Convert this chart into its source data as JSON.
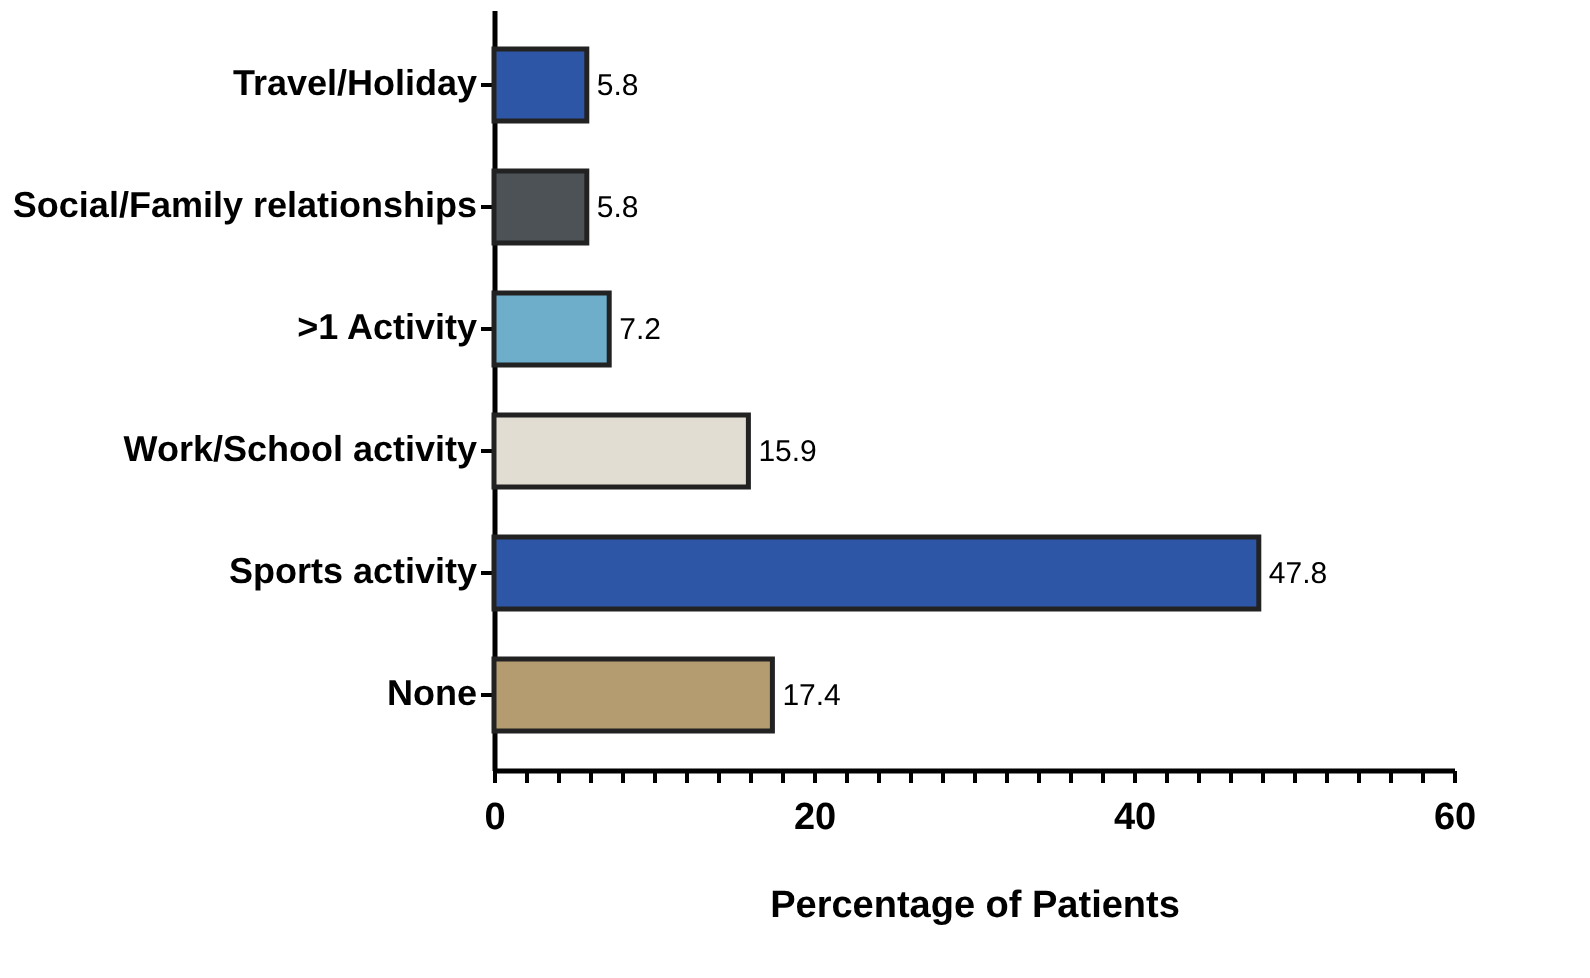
{
  "chart_data": {
    "type": "bar",
    "orientation": "horizontal",
    "xlabel": "Percentage of Patients",
    "categories": [
      "Travel/Holiday",
      "Social/Family relationships",
      ">1 Activity",
      "Work/School activity",
      "Sports activity",
      "None"
    ],
    "values": [
      5.8,
      5.8,
      7.2,
      15.9,
      47.8,
      17.4
    ],
    "colors": [
      "#2e56a6",
      "#4d5256",
      "#6eaecb",
      "#e2ddd2",
      "#2e56a6",
      "#b59c70"
    ],
    "xlim": [
      0,
      60
    ],
    "xticks": [
      0,
      {
        "value": 2,
        "label": null
      },
      {
        "value": 4,
        "label": null
      },
      {
        "value": 6,
        "label": null
      },
      {
        "value": 8,
        "label": null
      },
      {
        "value": 10,
        "label": null
      },
      {
        "value": 12,
        "label": null
      },
      {
        "value": 14,
        "label": null
      },
      {
        "value": 16,
        "label": null
      },
      {
        "value": 18,
        "label": null
      },
      20,
      {
        "value": 22,
        "label": null
      },
      {
        "value": 24,
        "label": null
      },
      {
        "value": 26,
        "label": null
      },
      {
        "value": 28,
        "label": null
      },
      {
        "value": 30,
        "label": null
      },
      {
        "value": 32,
        "label": null
      },
      {
        "value": 34,
        "label": null
      },
      {
        "value": 36,
        "label": null
      },
      {
        "value": 38,
        "label": null
      },
      40,
      {
        "value": 42,
        "label": null
      },
      {
        "value": 44,
        "label": null
      },
      {
        "value": 46,
        "label": null
      },
      {
        "value": 48,
        "label": null
      },
      {
        "value": 50,
        "label": null
      },
      {
        "value": 52,
        "label": null
      },
      {
        "value": 54,
        "label": null
      },
      {
        "value": 56,
        "label": null
      },
      {
        "value": 58,
        "label": null
      },
      60
    ],
    "data_labels": true,
    "grid": false,
    "legend": false
  }
}
